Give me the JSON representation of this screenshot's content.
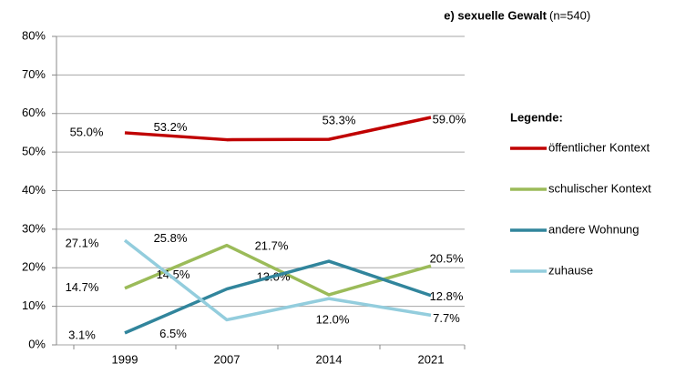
{
  "chart_data": {
    "type": "line",
    "title": "e) sexuelle Gewalt",
    "subtitle": "(n=540)",
    "legend_title": "Legende:",
    "categories": [
      "1999",
      "2007",
      "2014",
      "2021"
    ],
    "series": [
      {
        "name": "öffentlicher Kontext",
        "color": "#c00000",
        "values": [
          55.0,
          53.2,
          53.3,
          59.0
        ],
        "value_labels": [
          "55.0%",
          "53.2%",
          "53.3%",
          "59.0%"
        ]
      },
      {
        "name": "schulischer Kontext",
        "color": "#9bbb59",
        "values": [
          14.7,
          25.8,
          13.0,
          20.5
        ],
        "value_labels": [
          "14.7%",
          "25.8%",
          "13.0%",
          "20.5%"
        ]
      },
      {
        "name": "andere Wohnung",
        "color": "#31859c",
        "values": [
          3.1,
          14.5,
          21.7,
          12.8
        ],
        "value_labels": [
          "3.1%",
          "14.5%",
          "21.7%",
          "12.8%"
        ]
      },
      {
        "name": "zuhause",
        "color": "#93cddd",
        "values": [
          27.1,
          6.5,
          12.0,
          7.7
        ],
        "value_labels": [
          "27.1%",
          "6.5%",
          "12.0%",
          "7.7%"
        ]
      }
    ],
    "ylim": [
      0,
      80
    ],
    "yticks": [
      {
        "value": 0,
        "label": "0%"
      },
      {
        "value": 10,
        "label": "10%"
      },
      {
        "value": 20,
        "label": "20%"
      },
      {
        "value": 30,
        "label": "30%"
      },
      {
        "value": 40,
        "label": "40%"
      },
      {
        "value": 50,
        "label": "50%"
      },
      {
        "value": 60,
        "label": "60%"
      },
      {
        "value": 70,
        "label": "70%"
      },
      {
        "value": 80,
        "label": "80%"
      }
    ],
    "grid": true,
    "legend": "right"
  }
}
